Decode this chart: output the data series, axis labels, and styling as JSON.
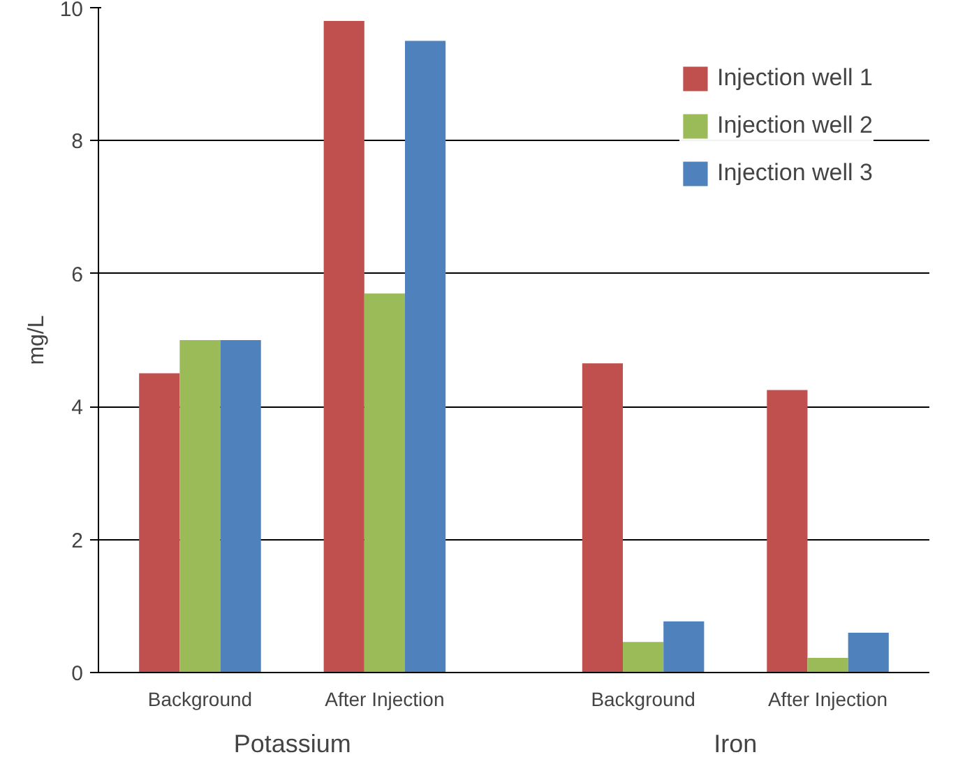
{
  "chart_data": {
    "type": "bar",
    "ylabel": "mg/L",
    "categories": [
      "Background",
      "After Injection",
      "Background",
      "After Injection"
    ],
    "annotations": [
      "Potassium",
      "Iron"
    ],
    "series": [
      {
        "name": "Injection well 1",
        "color": "#c0504d",
        "values": [
          4.5,
          9.8,
          4.65,
          4.25
        ]
      },
      {
        "name": "Injection well 2",
        "color": "#9bbb59",
        "values": [
          5.0,
          5.7,
          0.46,
          0.22
        ]
      },
      {
        "name": "Injection well 3",
        "color": "#4f81bd",
        "values": [
          5.0,
          9.5,
          0.77,
          0.6
        ]
      }
    ],
    "ylim": [
      0,
      10
    ],
    "yticks": [
      0,
      2,
      4,
      6,
      8,
      10
    ],
    "grid": "y",
    "legend": "top right"
  }
}
